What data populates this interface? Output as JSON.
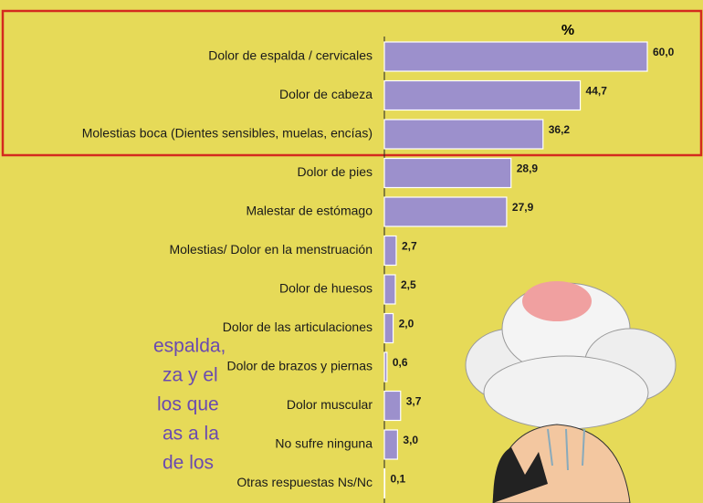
{
  "chart_data": {
    "type": "bar",
    "orientation": "horizontal",
    "value_axis_label": "%",
    "categories": [
      "Dolor de espalda / cervicales",
      "Dolor de cabeza",
      "Molestias boca (Dientes sensibles, muelas, encías)",
      "Dolor de pies",
      "Malestar de estómago",
      "Molestias/ Dolor en la menstruación",
      "Dolor de huesos",
      "Dolor de las articulaciones",
      "Dolor de brazos y piernas",
      "Dolor muscular",
      "No sufre ninguna",
      "Otras respuestas Ns/Nc"
    ],
    "values": [
      60.0,
      44.7,
      36.2,
      28.9,
      27.9,
      2.7,
      2.5,
      2.0,
      0.6,
      3.7,
      3.0,
      0.1
    ],
    "value_labels": [
      "60,0",
      "44,7",
      "36,2",
      "28,9",
      "27,9",
      "2,7",
      "2,5",
      "2,0",
      "0,6",
      "3,7",
      "3,0",
      "0,1"
    ],
    "color": "#9c90cc",
    "xlim": [
      0,
      60
    ],
    "annotations": [
      "espalda,",
      "za y el",
      "los que",
      "as a la",
      "de los"
    ]
  }
}
